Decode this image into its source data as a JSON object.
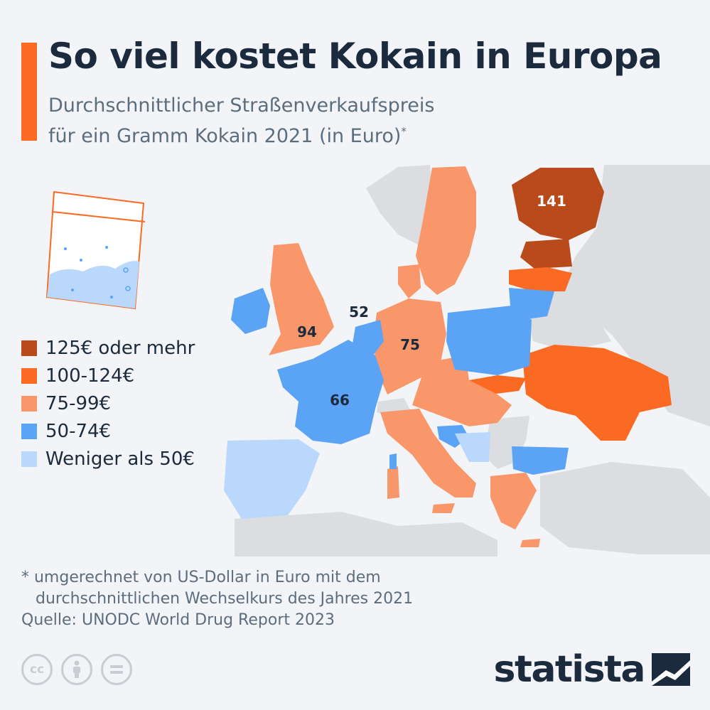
{
  "header": {
    "title": "So viel kostet Kokain in Europa",
    "subtitle_line1": "Durchschnittlicher Straßenverkaufspreis",
    "subtitle_line2": "für ein Gramm Kokain 2021 (in Euro)",
    "subtitle_mark": "*"
  },
  "legend": [
    {
      "label": "125€ oder mehr",
      "color": "#b84a1c"
    },
    {
      "label": "100-124€",
      "color": "#fb6a22"
    },
    {
      "label": "75-99€",
      "color": "#f9966a"
    },
    {
      "label": "50-74€",
      "color": "#5aa3f5"
    },
    {
      "label": "Weniger als 50€",
      "color": "#b9d8fb"
    }
  ],
  "labels": {
    "finland": "141",
    "uk": "94",
    "netherlands": "52",
    "germany": "75",
    "france": "66"
  },
  "footnote": {
    "line1": "* umgerechnet von US-Dollar in Euro mit dem",
    "line2": "durchschnittlichen Wechselkurs des Jahres 2021",
    "source": "Quelle: UNODC World Drug Report 2023"
  },
  "license_icons": [
    "cc-icon",
    "by-icon",
    "nd-icon"
  ],
  "logo": {
    "text": "statista"
  }
}
